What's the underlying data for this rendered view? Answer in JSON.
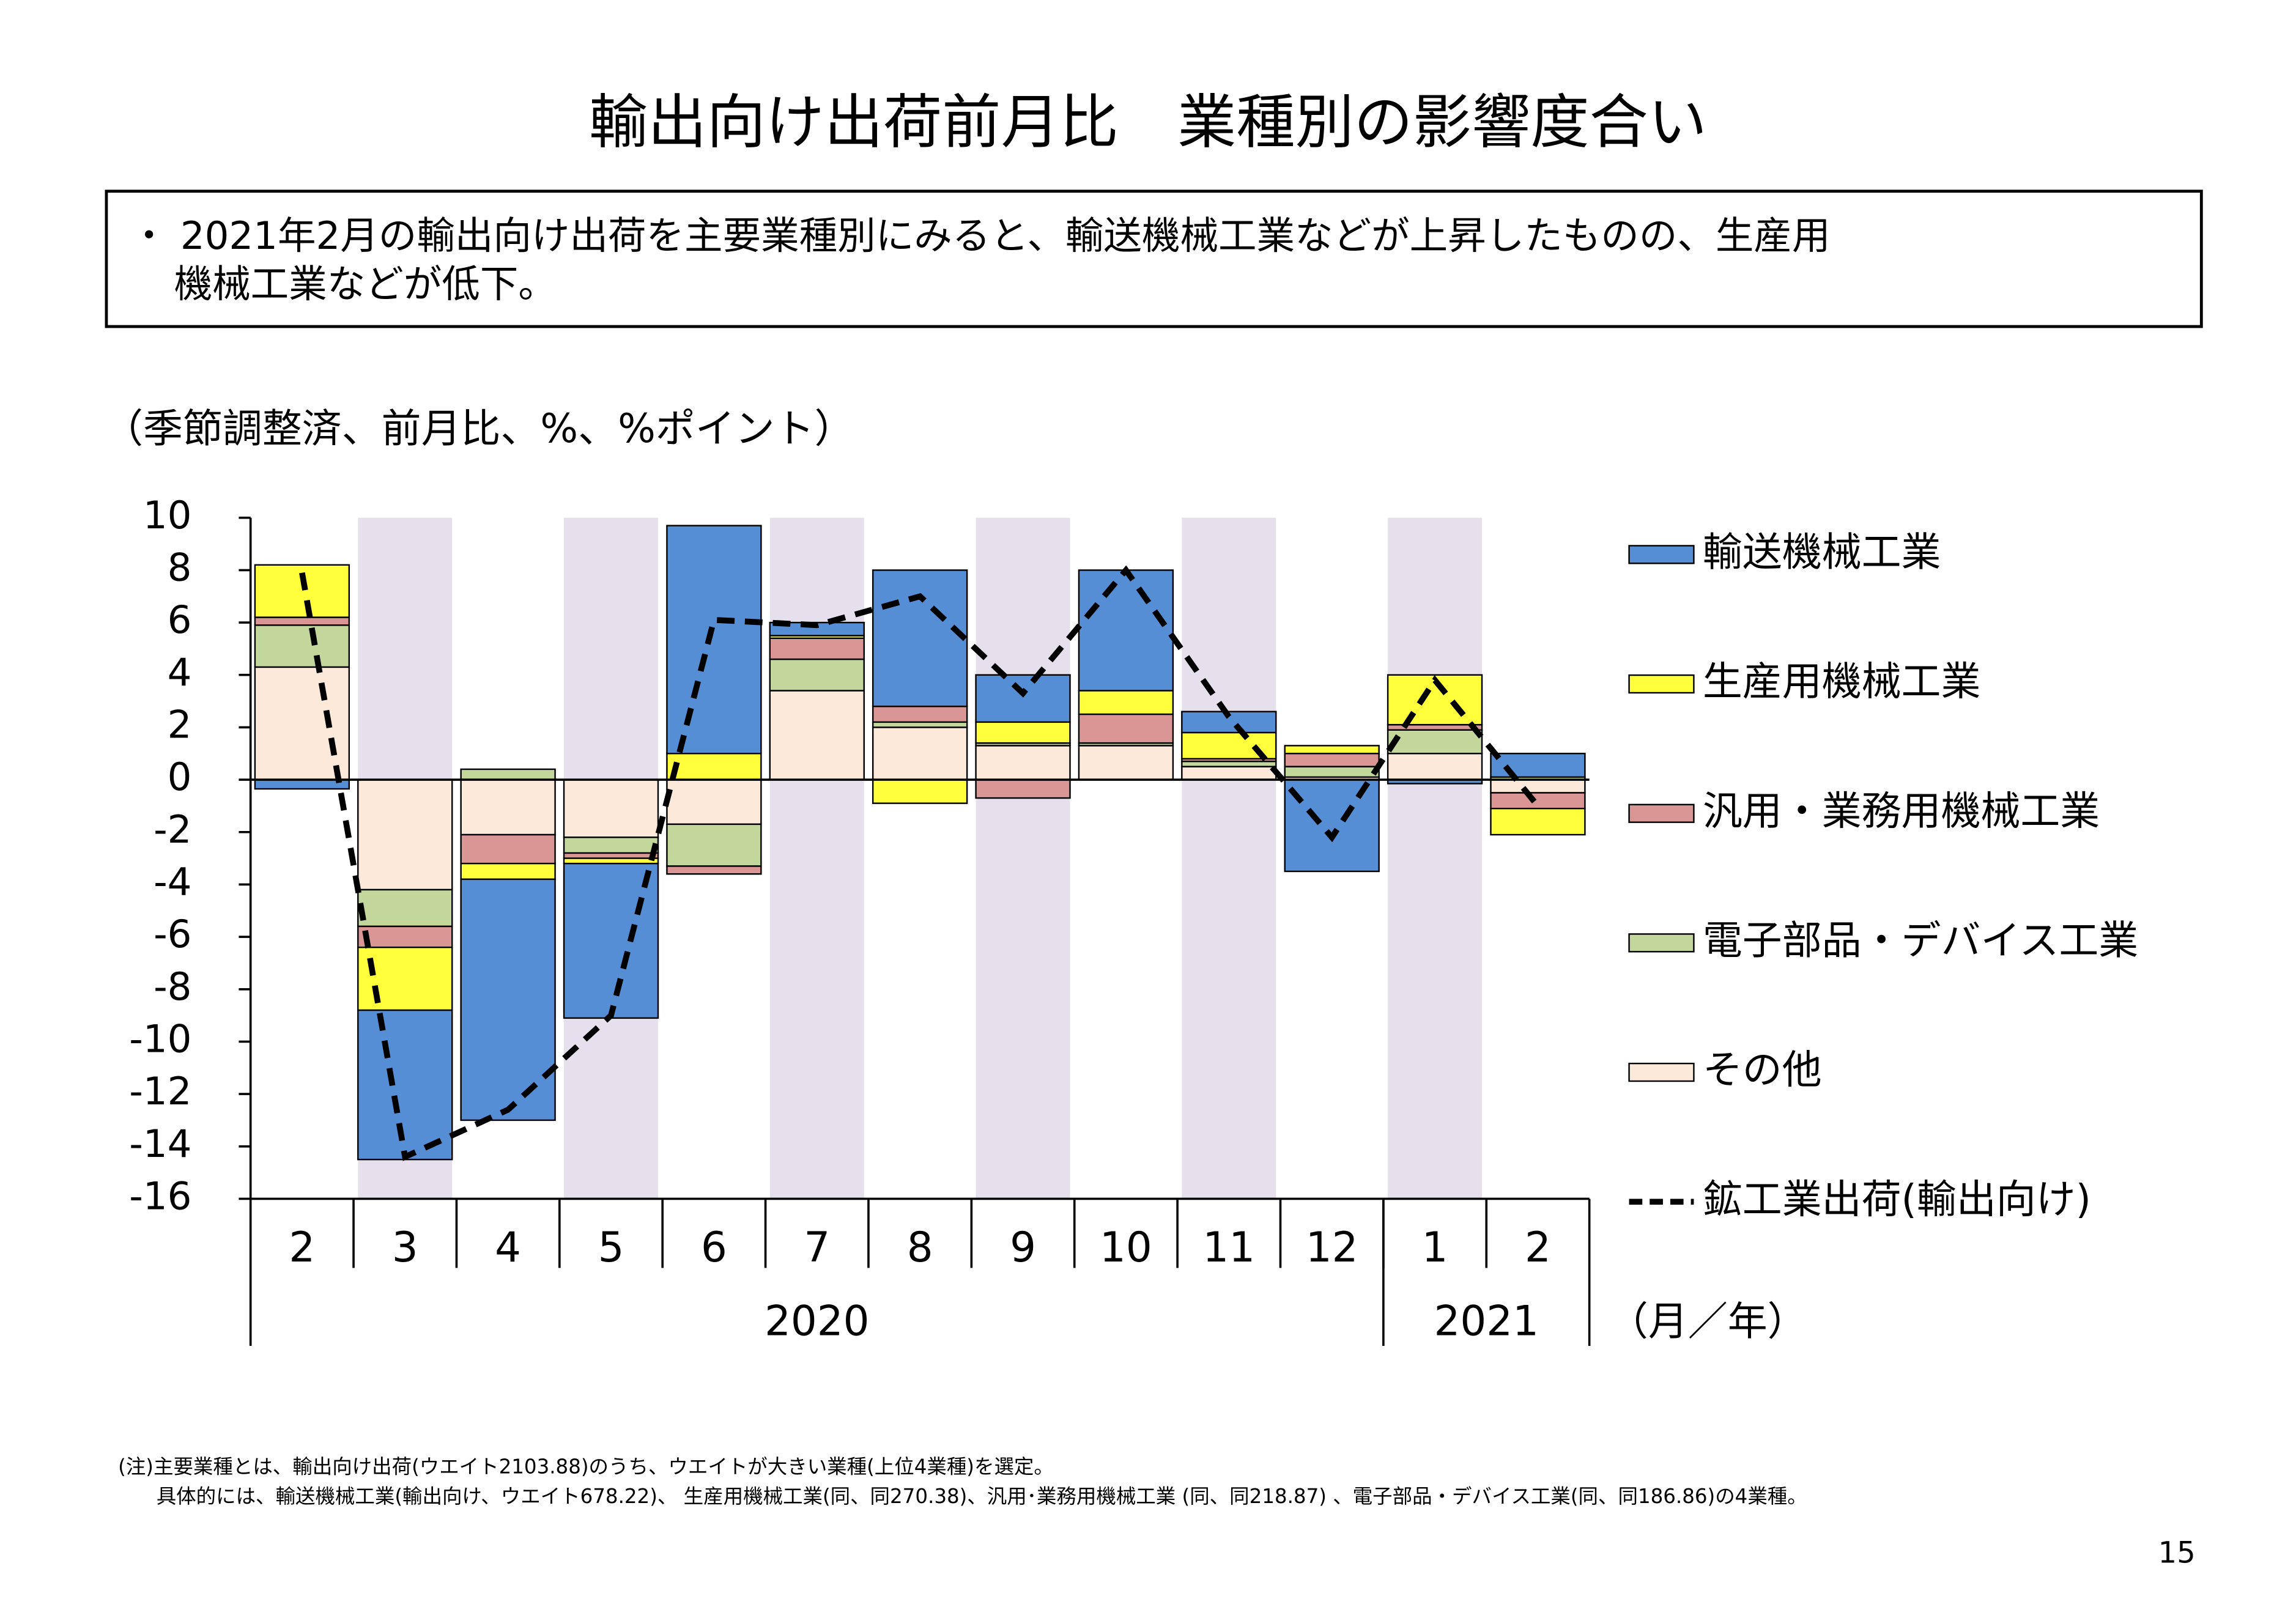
{
  "title": "輸出向け出荷前月比　業種別の影響度合い",
  "summary": [
    "・ 2021年2月の輸出向け出荷を主要業種別にみると、輸送機械工業などが上昇したものの、生産用",
    "機械工業などが低下。"
  ],
  "chart_data": {
    "type": "stacked_bar_line",
    "unit_label": "（季節調整済、前月比、%、%ポイント）",
    "x_unit_label": "（月／年）",
    "categories": [
      "2",
      "3",
      "4",
      "5",
      "6",
      "7",
      "8",
      "9",
      "10",
      "11",
      "12",
      "1",
      "2"
    ],
    "year_groups": [
      {
        "label": "2020",
        "months": 11
      },
      {
        "label": "2021",
        "months": 2
      }
    ],
    "ylim": [
      -16,
      10
    ],
    "yticks": [
      -16,
      -14,
      -12,
      -10,
      -8,
      -6,
      -4,
      -2,
      0,
      2,
      4,
      6,
      8,
      10
    ],
    "series": [
      {
        "name": "輸送機械工業",
        "color": "#558ed5",
        "values": [
          -0.35,
          -5.7,
          -9.2,
          -5.9,
          8.7,
          0.5,
          5.2,
          1.8,
          4.6,
          0.8,
          -3.5,
          -0.15,
          0.9
        ]
      },
      {
        "name": "生産用機械工業",
        "color": "#ffff3c",
        "values": [
          2.0,
          -2.4,
          -0.6,
          -0.2,
          1.0,
          0.1,
          -0.9,
          0.8,
          0.9,
          1.0,
          0.3,
          1.9,
          -1.0
        ]
      },
      {
        "name": "汎用・業務用機械工業",
        "color": "#d99694",
        "values": [
          0.3,
          -0.8,
          -1.1,
          -0.2,
          -0.3,
          0.8,
          0.6,
          -0.7,
          1.1,
          0.1,
          0.5,
          0.2,
          -0.6
        ]
      },
      {
        "name": "電子部品・デバイス工業",
        "color": "#c3d69b",
        "values": [
          1.6,
          -1.4,
          0.4,
          -0.6,
          -1.6,
          1.2,
          0.2,
          0.1,
          0.1,
          0.2,
          0.4,
          0.9,
          0.1
        ]
      },
      {
        "name": "その他",
        "color": "#fde9d9",
        "values": [
          4.3,
          -4.2,
          -2.1,
          -2.2,
          -1.7,
          3.4,
          2.0,
          1.3,
          1.3,
          0.5,
          0.1,
          1.0,
          -0.5
        ]
      }
    ],
    "line": {
      "name": "鉱工業出荷(輸出向け)",
      "color": "#000000",
      "dashed": true,
      "values": [
        7.9,
        -14.4,
        -12.6,
        -9.0,
        6.1,
        5.9,
        7.0,
        3.3,
        8.0,
        2.4,
        -2.2,
        3.8,
        -1.0
      ]
    }
  },
  "footnote": [
    "(注)主要業種とは、輸出向け出荷(ウエイト2103.88)のうち、ウエイトが大きい業種(上位4業種)を選定。",
    "具体的には、輸送機械工業(輸出向け、ウエイト678.22)、 生産用機械工業(同、同270.38)、汎用･業務用機械工業 (同、同218.87) 、電子部品・デバイス工業(同、同186.86)の4業種。"
  ],
  "page_number": "15"
}
